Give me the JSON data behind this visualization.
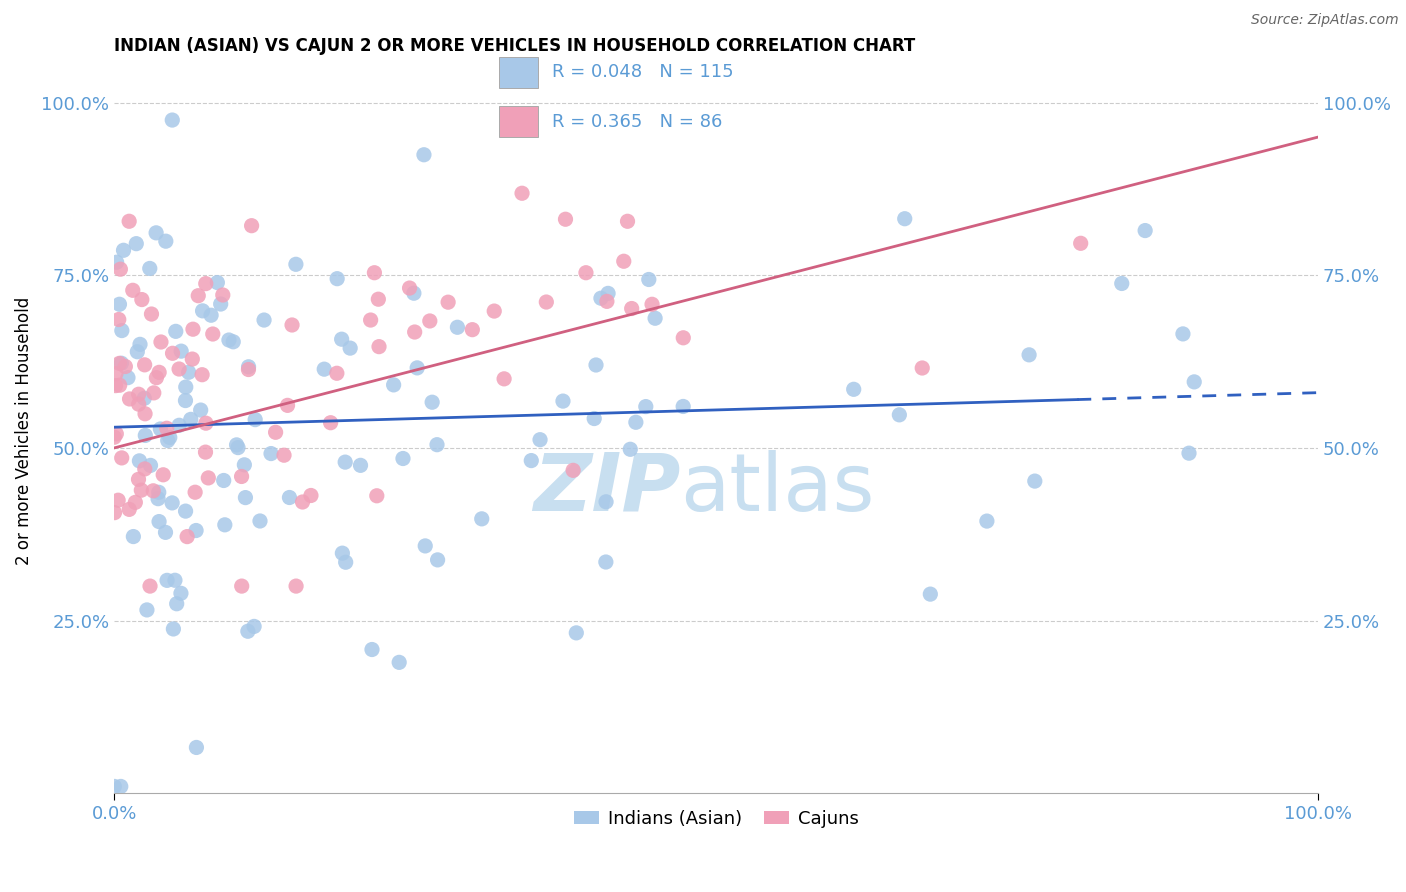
{
  "title": "INDIAN (ASIAN) VS CAJUN 2 OR MORE VEHICLES IN HOUSEHOLD CORRELATION CHART",
  "source": "Source: ZipAtlas.com",
  "ylabel": "2 or more Vehicles in Household",
  "legend_blue_R": "0.048",
  "legend_blue_N": "115",
  "legend_pink_R": "0.365",
  "legend_pink_N": "86",
  "blue_color": "#a8c8e8",
  "pink_color": "#f0a0b8",
  "blue_line_color": "#3060c0",
  "pink_line_color": "#d06080",
  "axis_color": "#5b9bd5",
  "grid_color": "#cccccc",
  "watermark_color": "#c8dff0",
  "xmin": 0,
  "xmax": 100,
  "ymin": 0,
  "ymax": 105,
  "ytick_vals": [
    0,
    25,
    50,
    75,
    100
  ],
  "ytick_labels": [
    "",
    "25.0%",
    "50.0%",
    "75.0%",
    "100.0%"
  ]
}
